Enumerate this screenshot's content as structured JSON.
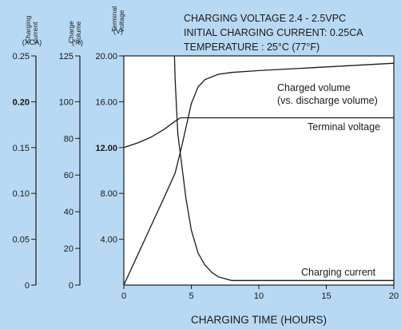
{
  "chart_data": {
    "type": "line",
    "notes": [
      "CHARGING VOLTAGE 2.4 - 2.5VPC",
      "INITIAL CHARGING CURRENT: 0.25CA",
      "TEMPERATURE : 25°C (77°F)"
    ],
    "xlabel": "CHARGING TIME (HOURS)",
    "xlim": [
      0,
      20
    ],
    "xticks": [
      "0",
      "5",
      "10",
      "15",
      "20"
    ],
    "axes": [
      {
        "id": "current",
        "label": [
          "Charging",
          "current"
        ],
        "unit": "(XCA)",
        "ylim": [
          0,
          0.25
        ],
        "ticks": [
          "0",
          "0.05",
          "0.10",
          "0.15",
          "0.20",
          "0.25"
        ]
      },
      {
        "id": "volume",
        "label": [
          "Charge",
          "volume"
        ],
        "unit": "(%)",
        "ylim": [
          0,
          125
        ],
        "ticks": [
          "0",
          "20",
          "40",
          "60",
          "80",
          "100",
          "125"
        ]
      },
      {
        "id": "voltage",
        "label": [
          "Terminal",
          "voltage"
        ],
        "unit": "(V)",
        "ylim": [
          0,
          20
        ],
        "ticks": [
          "20.00",
          "16.00",
          "12.00",
          "8.00",
          "4.00"
        ]
      }
    ],
    "series": [
      {
        "name": "Charged volume",
        "name_line2": "(vs. discharge volume)",
        "axis": "volume",
        "x": [
          0,
          1,
          2,
          3,
          3.8,
          4.3,
          5,
          5.5,
          6,
          7,
          8,
          10,
          15,
          20
        ],
        "y": [
          0,
          16,
          32,
          48,
          61,
          76,
          99,
          108,
          112,
          115,
          116,
          117,
          119,
          121
        ]
      },
      {
        "name": "Terminal voltage",
        "axis": "voltage",
        "x": [
          0,
          1,
          2,
          3,
          3.8,
          4.2,
          5,
          10,
          15,
          20
        ],
        "y": [
          12.0,
          12.4,
          12.9,
          13.6,
          14.3,
          14.6,
          14.6,
          14.6,
          14.6,
          14.6
        ]
      },
      {
        "name": "Charging current",
        "axis": "current",
        "x": [
          3.75,
          3.8,
          3.9,
          4.0,
          4.3,
          4.6,
          5.0,
          5.5,
          6.0,
          6.5,
          7.0,
          8.0,
          10,
          15,
          20
        ],
        "y": [
          0.25,
          0.225,
          0.195,
          0.165,
          0.13,
          0.095,
          0.06,
          0.035,
          0.022,
          0.014,
          0.009,
          0.005,
          0.005,
          0.005,
          0.005
        ]
      }
    ]
  }
}
